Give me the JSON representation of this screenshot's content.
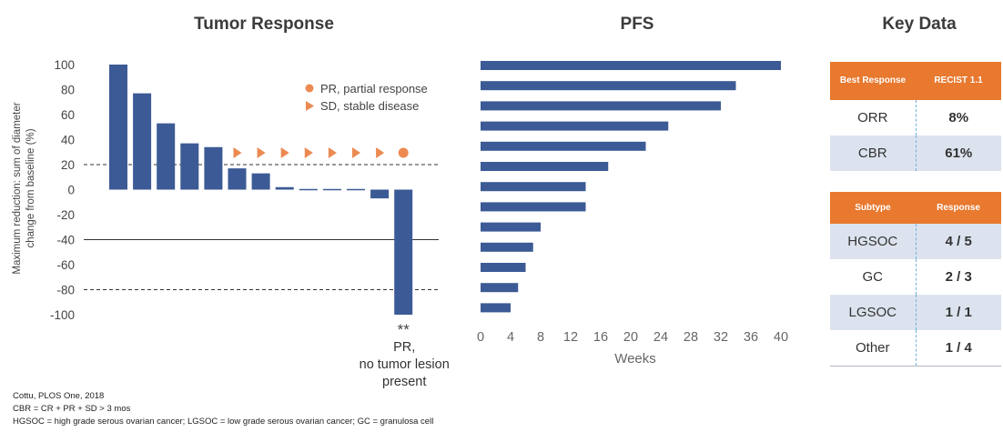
{
  "panels": {
    "tumor_title": "Tumor Response",
    "pfs_title": "PFS",
    "key_title": "Key Data"
  },
  "chart_data": [
    {
      "type": "bar",
      "name": "Tumor Response",
      "orientation": "vertical",
      "ylabel": "Maximum reduction: sum of diameter change from baseline (%)",
      "ylim": [
        -100,
        100
      ],
      "yticks": [
        100,
        80,
        60,
        40,
        20,
        0,
        -20,
        -40,
        -60,
        -80,
        -100
      ],
      "values": [
        100,
        77,
        53,
        37,
        34,
        17,
        13,
        2,
        1,
        1,
        1,
        -7,
        -100
      ],
      "markers": [
        "",
        "",
        "",
        "",
        "",
        "SD",
        "SD",
        "SD",
        "SD",
        "SD",
        "SD",
        "SD",
        "PR"
      ],
      "reference_lines": [
        {
          "y": 20,
          "style": "dashed"
        },
        {
          "y": -40,
          "style": "solid"
        },
        {
          "y": -80,
          "style": "dashed"
        }
      ],
      "legend": [
        {
          "symbol": "circle",
          "label": "PR, partial response"
        },
        {
          "symbol": "triangle",
          "label": "SD, stable disease"
        }
      ],
      "annotation": {
        "stars": "**",
        "lines": [
          "PR,",
          "no tumor lesion",
          "present"
        ]
      },
      "color": "#3c5a95",
      "marker_color": "#ec8a52"
    },
    {
      "type": "bar",
      "name": "PFS",
      "orientation": "horizontal",
      "xlabel": "Weeks",
      "xlim": [
        0,
        40
      ],
      "xticks": [
        0,
        4,
        8,
        12,
        16,
        20,
        24,
        28,
        32,
        36,
        40
      ],
      "values": [
        40,
        34,
        32,
        25,
        22,
        17,
        14,
        14,
        8,
        7,
        6,
        5,
        4
      ],
      "color": "#3c5a95"
    },
    {
      "type": "table",
      "name": "Key Data",
      "tables": [
        {
          "header": [
            "Best Response",
            "RECIST 1.1"
          ],
          "rows": [
            [
              "ORR",
              "8%"
            ],
            [
              "CBR",
              "61%"
            ]
          ]
        },
        {
          "header": [
            "Subtype",
            "Response"
          ],
          "rows": [
            [
              "HGSOC",
              "4 / 5"
            ],
            [
              "GC",
              "2 / 3"
            ],
            [
              "LGSOC",
              "1 / 1"
            ],
            [
              "Other",
              "1 / 4"
            ]
          ]
        }
      ]
    }
  ],
  "footnotes": [
    "Cottu, PLOS One, 2018",
    "CBR = CR + PR + SD > 3 mos",
    "HGSOC = high grade serous ovarian cancer; LGSOC = low grade serous ovarian cancer; GC = granulosa cell"
  ]
}
